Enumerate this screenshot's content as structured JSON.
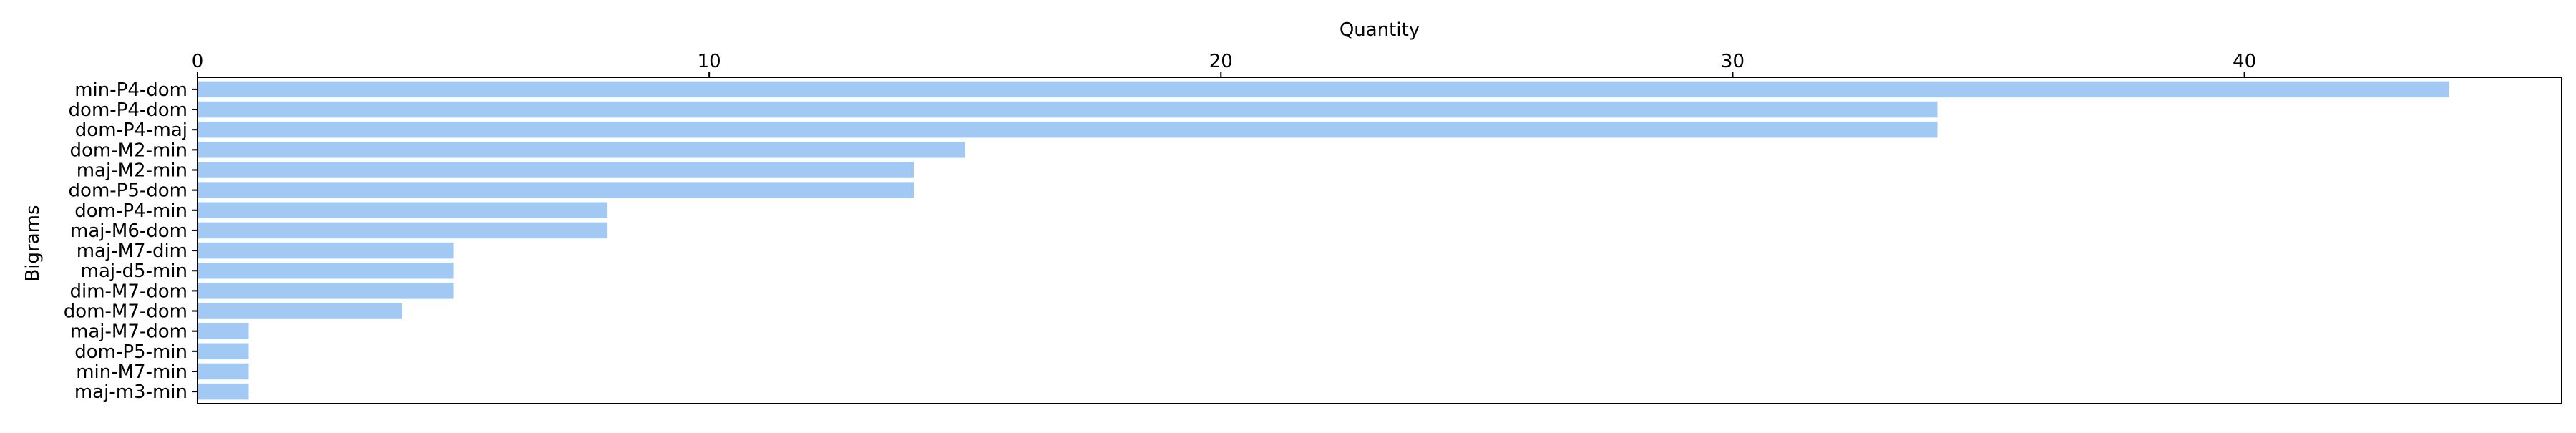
{
  "chart_data": {
    "type": "bar",
    "orientation": "horizontal",
    "xlabel": "Quantity",
    "ylabel": "Bigrams",
    "x_axis_position": "top",
    "xlim": [
      0,
      46.2
    ],
    "xticks": [
      0,
      10,
      20,
      30,
      40
    ],
    "grid": false,
    "legend": "none",
    "bar_color": "#a1c9f4",
    "categories": [
      "min-P4-dom",
      "dom-P4-dom",
      "dom-P4-maj",
      "dom-M2-min",
      "maj-M2-min",
      "dom-P5-dom",
      "dom-P4-min",
      "maj-M6-dom",
      "maj-M7-dim",
      "maj-d5-min",
      "dim-M7-dom",
      "dom-M7-dom",
      "maj-M7-dom",
      "dom-P5-min",
      "min-M7-min",
      "maj-m3-min"
    ],
    "values": [
      44,
      34,
      34,
      15,
      14,
      14,
      8,
      8,
      5,
      5,
      5,
      4,
      1,
      1,
      1,
      1
    ]
  }
}
